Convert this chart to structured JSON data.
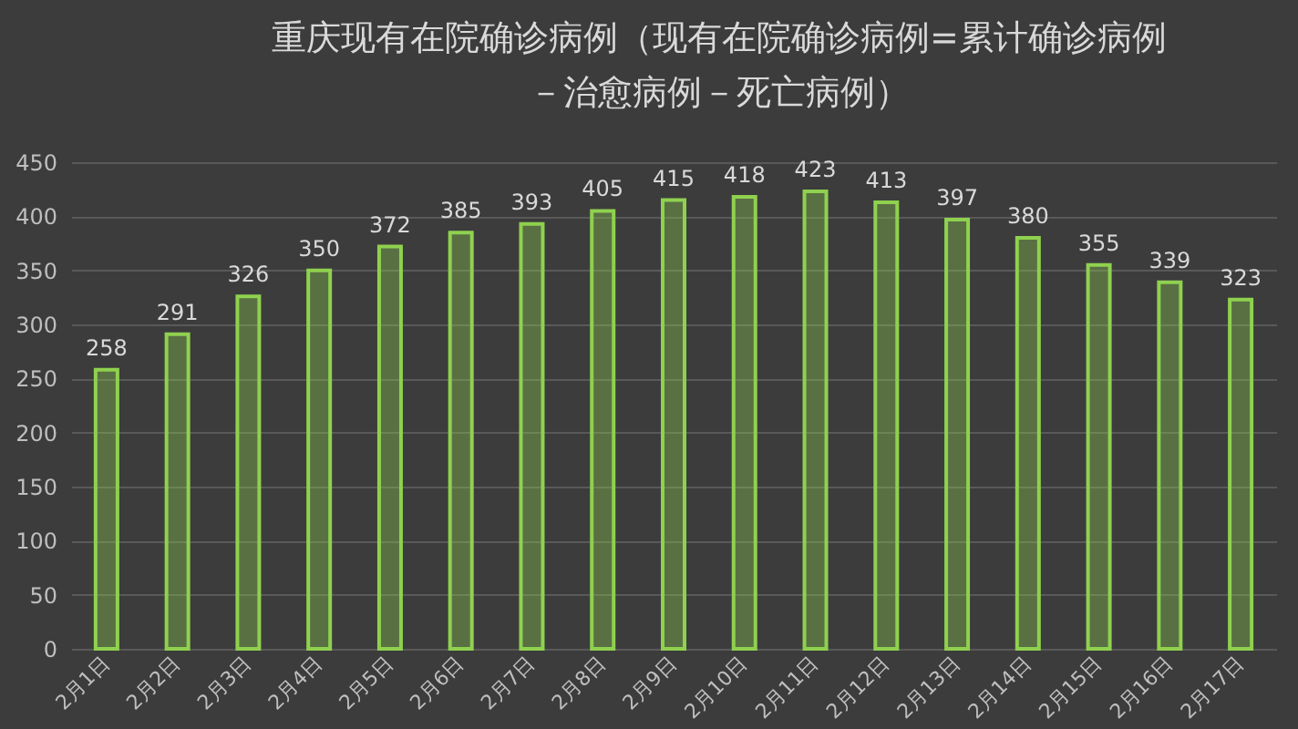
{
  "chart_data": {
    "type": "bar",
    "title": "重庆现有在院确诊病例（现有在院确诊病例=累计确诊病例－治愈病例－死亡病例）",
    "categories": [
      "2月1日",
      "2月2日",
      "2月3日",
      "2月4日",
      "2月5日",
      "2月6日",
      "2月7日",
      "2月8日",
      "2月9日",
      "2月10日",
      "2月11日",
      "2月12日",
      "2月13日",
      "2月14日",
      "2月15日",
      "2月16日",
      "2月17日"
    ],
    "values": [
      258,
      291,
      326,
      350,
      372,
      385,
      393,
      405,
      415,
      418,
      423,
      413,
      397,
      380,
      355,
      339,
      323
    ],
    "color": "#8fd14f",
    "ylim": [
      0,
      450
    ],
    "yticks": [
      0,
      50,
      100,
      150,
      200,
      250,
      300,
      350,
      400,
      450
    ],
    "grid": "y",
    "data_labels": true
  }
}
